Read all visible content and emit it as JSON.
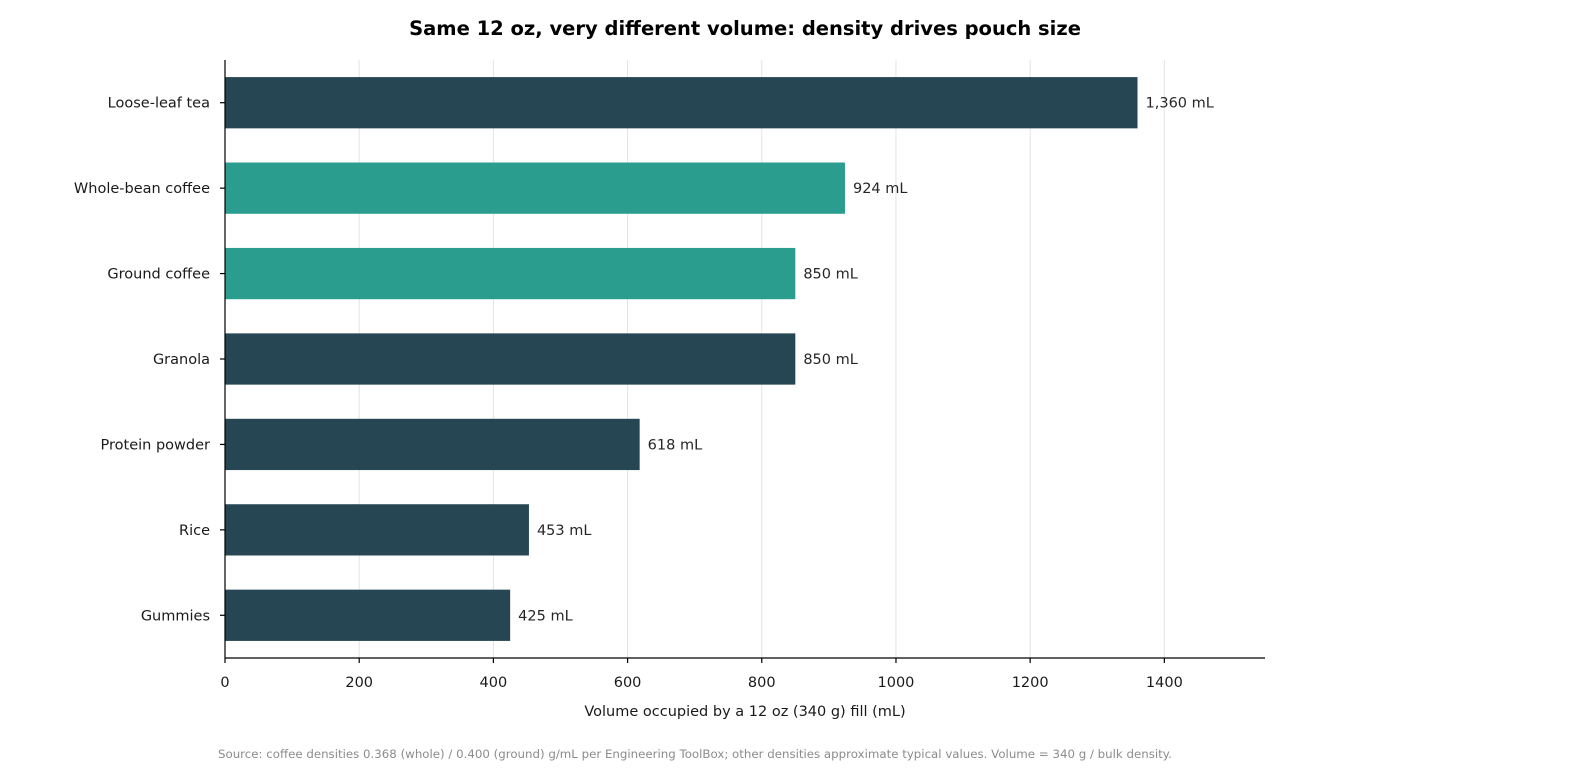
{
  "chart_data": {
    "type": "bar",
    "orientation": "horizontal",
    "title": "Same 12 oz, very different volume: density drives pouch size",
    "xlabel": "Volume occupied by a 12 oz (340 g) fill (mL)",
    "ylabel": "",
    "xlim": [
      0,
      1550
    ],
    "xticks": [
      0,
      200,
      400,
      600,
      800,
      1000,
      1200,
      1400
    ],
    "grid": "vertical",
    "categories": [
      "Loose-leaf tea",
      "Whole-bean coffee",
      "Ground coffee",
      "Granola",
      "Protein powder",
      "Rice",
      "Gummies"
    ],
    "values": [
      1360,
      924,
      850,
      850,
      618,
      453,
      425
    ],
    "data_labels": [
      "1,360 mL",
      "924 mL",
      "850 mL",
      "850 mL",
      "618 mL",
      "453 mL",
      "425 mL"
    ],
    "highlighted": [
      false,
      true,
      true,
      false,
      false,
      false,
      false
    ],
    "colors": {
      "default": "#264653",
      "highlight": "#2a9d8f"
    },
    "source": "Source: coffee densities 0.368 (whole) / 0.400 (ground) g/mL per Engineering ToolBox; other densities approximate typical values. Volume = 340 g / bulk density."
  }
}
